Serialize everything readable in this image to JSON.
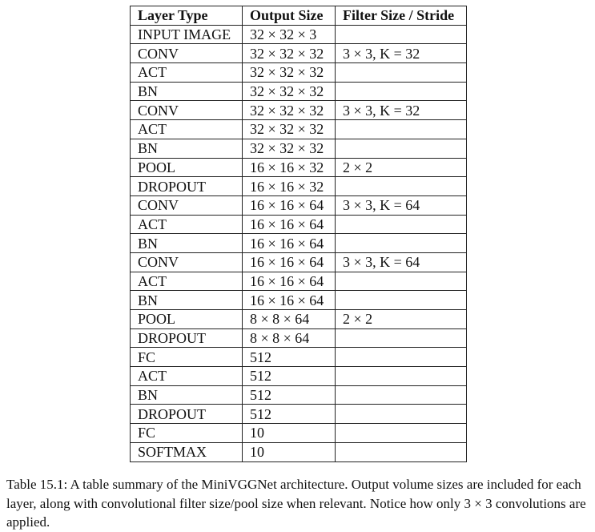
{
  "table": {
    "headers": [
      "Layer Type",
      "Output Size",
      "Filter Size / Stride"
    ],
    "rows": [
      [
        "INPUT IMAGE",
        "32 × 32 × 3",
        ""
      ],
      [
        "CONV",
        "32 × 32 × 32",
        "3 × 3, K = 32"
      ],
      [
        "ACT",
        "32 × 32 × 32",
        ""
      ],
      [
        "BN",
        "32 × 32 × 32",
        ""
      ],
      [
        "CONV",
        "32 × 32 × 32",
        "3 × 3, K = 32"
      ],
      [
        "ACT",
        "32 × 32 × 32",
        ""
      ],
      [
        "BN",
        "32 × 32 × 32",
        ""
      ],
      [
        "POOL",
        "16 × 16 × 32",
        "2 × 2"
      ],
      [
        "DROPOUT",
        "16 × 16 × 32",
        ""
      ],
      [
        "CONV",
        "16 × 16 × 64",
        "3 × 3, K = 64"
      ],
      [
        "ACT",
        "16 × 16 × 64",
        ""
      ],
      [
        "BN",
        "16 × 16 × 64",
        ""
      ],
      [
        "CONV",
        "16 × 16 × 64",
        "3 × 3, K = 64"
      ],
      [
        "ACT",
        "16 × 16 × 64",
        ""
      ],
      [
        "BN",
        "16 × 16 × 64",
        ""
      ],
      [
        "POOL",
        "8 × 8 × 64",
        "2 × 2"
      ],
      [
        "DROPOUT",
        "8 × 8 × 64",
        ""
      ],
      [
        "FC",
        "512",
        ""
      ],
      [
        "ACT",
        "512",
        ""
      ],
      [
        "BN",
        "512",
        ""
      ],
      [
        "DROPOUT",
        "512",
        ""
      ],
      [
        "FC",
        "10",
        ""
      ],
      [
        "SOFTMAX",
        "10",
        ""
      ]
    ]
  },
  "caption": "Table 15.1: A table summary of the MiniVGGNet architecture. Output volume sizes are included for each layer, along with convolutional filter size/pool size when relevant. Notice how only 3 × 3 convolutions are applied."
}
